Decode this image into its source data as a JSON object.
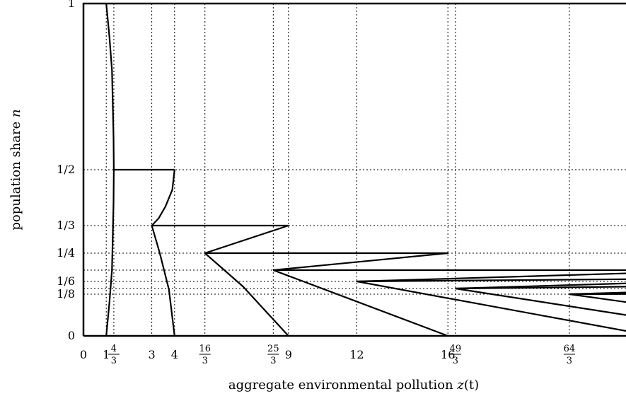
{
  "chart_data": {
    "type": "line",
    "xlabel_text": "aggregate environmental pollution ",
    "xlabel_var": "z",
    "xlabel_arg": "(t)",
    "ylabel_text": "population share ",
    "ylabel_var": "n",
    "xlim": [
      0,
      25
    ],
    "ylim": [
      0,
      1
    ],
    "x_ticks": [
      {
        "value": 0,
        "label": "0"
      },
      {
        "value": 1,
        "label": "1"
      },
      {
        "value": 1.3333,
        "num": "4",
        "den": "3"
      },
      {
        "value": 3,
        "label": "3"
      },
      {
        "value": 4,
        "label": "4"
      },
      {
        "value": 5.3333,
        "num": "16",
        "den": "3"
      },
      {
        "value": 8.3333,
        "num": "25",
        "den": "3"
      },
      {
        "value": 9,
        "label": "9"
      },
      {
        "value": 12,
        "label": "12"
      },
      {
        "value": 16,
        "label": "16"
      },
      {
        "value": 16.3333,
        "num": "49",
        "den": "3"
      },
      {
        "value": 21.3333,
        "num": "64",
        "den": "3"
      }
    ],
    "y_ticks": [
      {
        "value": 0,
        "label": "0"
      },
      {
        "value": 0.125,
        "label": "1/8"
      },
      {
        "value": 0.1667,
        "label": "1/6"
      },
      {
        "value": 0.25,
        "label": "1/4"
      },
      {
        "value": 0.3333,
        "label": "1/3"
      },
      {
        "value": 0.5,
        "label": "1/2"
      },
      {
        "value": 1,
        "label": "1"
      }
    ],
    "extra_grid_y": [
      0.2,
      0.1429
    ],
    "grid": true,
    "series": [
      {
        "points": [
          [
            1.0,
            1.0
          ],
          [
            1.14,
            0.9
          ],
          [
            1.25,
            0.8
          ],
          [
            1.32,
            0.6
          ],
          [
            1.333,
            0.5
          ],
          [
            1.32,
            0.4
          ],
          [
            1.25,
            0.2
          ],
          [
            1.14,
            0.1
          ],
          [
            1.0,
            0.0
          ]
        ]
      },
      {
        "points": [
          [
            1.333,
            0.5
          ],
          [
            4.0,
            0.5
          ]
        ]
      },
      {
        "points": [
          [
            4.0,
            0.5
          ],
          [
            3.9,
            0.44
          ],
          [
            3.6,
            0.39
          ],
          [
            3.3,
            0.355
          ],
          [
            3.0,
            0.3333
          ]
        ]
      },
      {
        "points": [
          [
            3.0,
            0.3333
          ],
          [
            3.35,
            0.25
          ],
          [
            3.75,
            0.14
          ],
          [
            4.0,
            0.0
          ]
        ]
      },
      {
        "points": [
          [
            3.0,
            0.3333
          ],
          [
            9.0,
            0.3333
          ]
        ]
      },
      {
        "points": [
          [
            9.0,
            0.3333
          ],
          [
            5.3333,
            0.25
          ]
        ]
      },
      {
        "points": [
          [
            5.3333,
            0.25
          ],
          [
            16.0,
            0.25
          ]
        ]
      },
      {
        "points": [
          [
            5.3333,
            0.25
          ],
          [
            7.0,
            0.15
          ],
          [
            9.0,
            0.0
          ]
        ]
      },
      {
        "points": [
          [
            16.0,
            0.25
          ],
          [
            8.3333,
            0.2
          ]
        ]
      },
      {
        "points": [
          [
            8.3333,
            0.2
          ],
          [
            25.0,
            0.2
          ]
        ]
      },
      {
        "points": [
          [
            8.3333,
            0.2
          ],
          [
            16.0,
            0.0
          ]
        ]
      },
      {
        "points": [
          [
            25.0,
            0.193
          ],
          [
            12.0,
            0.1667
          ]
        ]
      },
      {
        "points": [
          [
            12.0,
            0.1667
          ],
          [
            25.0,
            0.174
          ]
        ]
      },
      {
        "points": [
          [
            12.0,
            0.1667
          ],
          [
            25.0,
            0.0
          ]
        ]
      },
      {
        "points": [
          [
            16.3333,
            0.1429
          ],
          [
            25.0,
            0.163
          ]
        ]
      },
      {
        "points": [
          [
            16.3333,
            0.1429
          ],
          [
            25.0,
            0.15
          ]
        ]
      },
      {
        "points": [
          [
            16.3333,
            0.1429
          ],
          [
            25.0,
            0.05
          ]
        ]
      },
      {
        "points": [
          [
            21.3333,
            0.125
          ],
          [
            25.0,
            0.133
          ]
        ]
      },
      {
        "points": [
          [
            21.3333,
            0.125
          ],
          [
            25.0,
            0.126
          ]
        ]
      },
      {
        "points": [
          [
            21.3333,
            0.125
          ],
          [
            25.0,
            0.09
          ]
        ]
      }
    ]
  }
}
